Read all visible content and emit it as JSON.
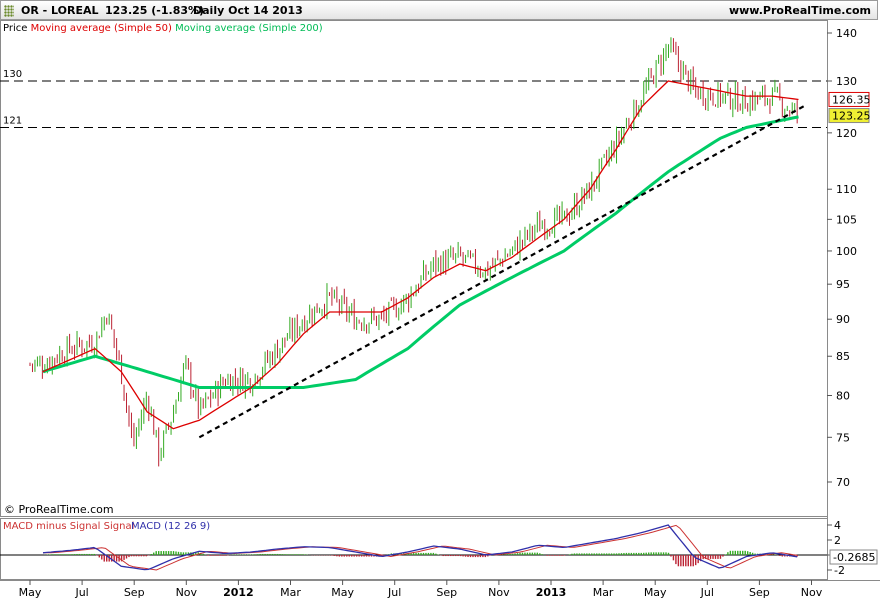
{
  "header": {
    "symbol": "OR - LOREAL",
    "last_quote": "123.25 (-1.83%)",
    "period_date": "Daily  Oct 14 2013",
    "site": "www.ProRealTime.com"
  },
  "legend": {
    "price": "Price",
    "ma50": "Moving average (Simple 50)",
    "ma200": "Moving average (Simple 200)"
  },
  "watermark": "© ProRealTime.com",
  "macd_legend": {
    "hist": "MACD minus Signal Signal",
    "macd": "MACD (12 26 9)"
  },
  "colors": {
    "up": "#33aa22",
    "down": "#bb2233",
    "ma50": "#dd0000",
    "ma200": "#00cc66",
    "macd": "#3030aa",
    "signal": "#cc3333",
    "badge_ma50": "#dd0000",
    "badge_price": "#efef33"
  },
  "chart_data": [
    {
      "type": "candlestick",
      "title": "OR - LOREAL",
      "y_axis": {
        "ylim": [
          66,
          144
        ],
        "ticks": [
          70,
          75,
          80,
          85,
          90,
          95,
          100,
          105,
          110,
          120,
          130,
          140
        ],
        "scale": "log"
      },
      "x_axis": {
        "labels": [
          "May",
          "Jul",
          "Sep",
          "Nov",
          "2012",
          "Mar",
          "May",
          "Jul",
          "Sep",
          "Nov",
          "2013",
          "Mar",
          "May",
          "Jul",
          "Sep",
          "Nov"
        ]
      },
      "levels": [
        {
          "label": "130",
          "value": 130
        },
        {
          "label": "121",
          "value": 121
        }
      ],
      "badges": [
        {
          "label": "126.35",
          "value": 126.35,
          "series": "Moving average (Simple 50)"
        },
        {
          "label": "123.25",
          "value": 123.25,
          "series": "Price"
        }
      ],
      "trendline": {
        "from": [
          "Nov 2011",
          75
        ],
        "to": [
          "Oct 2013",
          123
        ]
      },
      "price_path": [
        [
          "May 2011",
          84
        ],
        [
          "Jun 2011",
          86
        ],
        [
          "Jul 2011",
          87
        ],
        [
          "Jul 2011",
          91
        ],
        [
          "Aug 2011",
          83
        ],
        [
          "Aug 2011",
          74
        ],
        [
          "Sep 2011",
          80
        ],
        [
          "Sep 2011",
          73
        ],
        [
          "Oct 2011",
          78
        ],
        [
          "Oct 2011",
          84
        ],
        [
          "Nov 2011",
          78
        ],
        [
          "Dec 2011",
          82
        ],
        [
          "Jan 2012",
          82
        ],
        [
          "Feb 2012",
          86
        ],
        [
          "Mar 2012",
          90
        ],
        [
          "Apr 2012",
          93
        ],
        [
          "May 2012",
          90
        ],
        [
          "Jun 2012",
          90
        ],
        [
          "Jul 2012",
          93
        ],
        [
          "Aug 2012",
          98
        ],
        [
          "Sep 2012",
          99
        ],
        [
          "Oct 2012",
          97
        ],
        [
          "Nov 2012",
          100
        ],
        [
          "Dec 2012",
          104
        ],
        [
          "Jan 2013",
          105
        ],
        [
          "Feb 2013",
          110
        ],
        [
          "Mar 2013",
          118
        ],
        [
          "Apr 2013",
          127
        ],
        [
          "May 2013",
          137
        ],
        [
          "Jun 2013",
          128
        ],
        [
          "Jul 2013",
          127
        ],
        [
          "Aug 2013",
          126
        ],
        [
          "Sep 2013",
          127
        ],
        [
          "Oct 2013",
          123.25
        ]
      ],
      "ma50_path": [
        [
          "May 2011",
          83
        ],
        [
          "Jul 2011",
          86
        ],
        [
          "Aug 2011",
          83
        ],
        [
          "Sep 2011",
          78
        ],
        [
          "Oct 2011",
          76
        ],
        [
          "Nov 2011",
          77
        ],
        [
          "Dec 2011",
          79
        ],
        [
          "Jan 2012",
          81
        ],
        [
          "Feb 2012",
          84
        ],
        [
          "Mar 2012",
          88
        ],
        [
          "Apr 2012",
          91
        ],
        [
          "May 2012",
          91
        ],
        [
          "Jun 2012",
          91
        ],
        [
          "Jul 2012",
          93
        ],
        [
          "Aug 2012",
          96
        ],
        [
          "Sep 2012",
          98
        ],
        [
          "Oct 2012",
          97
        ],
        [
          "Nov 2012",
          99
        ],
        [
          "Dec 2012",
          102
        ],
        [
          "Jan 2013",
          105
        ],
        [
          "Feb 2013",
          110
        ],
        [
          "Mar 2013",
          117
        ],
        [
          "Apr 2013",
          125
        ],
        [
          "May 2013",
          130
        ],
        [
          "Jun 2013",
          129
        ],
        [
          "Jul 2013",
          128
        ],
        [
          "Aug 2013",
          127
        ],
        [
          "Sep 2013",
          127
        ],
        [
          "Oct 2013",
          126.35
        ]
      ],
      "ma200_path": [
        [
          "May 2011",
          83
        ],
        [
          "Jul 2011",
          85
        ],
        [
          "Sep 2011",
          83
        ],
        [
          "Nov 2011",
          81
        ],
        [
          "Jan 2012",
          81
        ],
        [
          "Mar 2012",
          81
        ],
        [
          "May 2012",
          82
        ],
        [
          "Jul 2012",
          86
        ],
        [
          "Sep 2012",
          92
        ],
        [
          "Nov 2012",
          96
        ],
        [
          "Jan 2013",
          100
        ],
        [
          "Mar 2013",
          106
        ],
        [
          "May 2013",
          113
        ],
        [
          "Jul 2013",
          119
        ],
        [
          "Aug 2013",
          121
        ],
        [
          "Oct 2013",
          123
        ]
      ]
    },
    {
      "type": "macd",
      "title": "MACD (12 26 9)",
      "series": [
        {
          "name": "MACD (12 26 9)"
        },
        {
          "name": "MACD minus Signal Signal"
        }
      ],
      "y_axis": {
        "ticks": [
          4,
          2,
          0,
          -2
        ]
      },
      "last_value_label": "-0.2685",
      "macd_path": [
        [
          "May 2011",
          0.3
        ],
        [
          "Jun 2011",
          0.6
        ],
        [
          "Jul 2011",
          1.0
        ],
        [
          "Aug 2011",
          -1.5
        ],
        [
          "Sep 2011",
          -2.0
        ],
        [
          "Oct 2011",
          -0.5
        ],
        [
          "Nov 2011",
          0.5
        ],
        [
          "Dec 2011",
          0.2
        ],
        [
          "Jan 2012",
          0.4
        ],
        [
          "Feb 2012",
          0.8
        ],
        [
          "Mar 2012",
          1.1
        ],
        [
          "Apr 2012",
          1.0
        ],
        [
          "May 2012",
          0.4
        ],
        [
          "Jun 2012",
          -0.2
        ],
        [
          "Jul 2012",
          0.4
        ],
        [
          "Aug 2012",
          1.2
        ],
        [
          "Sep 2012",
          0.8
        ],
        [
          "Oct 2012",
          0.0
        ],
        [
          "Nov 2012",
          0.4
        ],
        [
          "Dec 2012",
          1.3
        ],
        [
          "Jan 2013",
          1.0
        ],
        [
          "Feb 2013",
          1.6
        ],
        [
          "Mar 2013",
          2.2
        ],
        [
          "Apr 2013",
          3.0
        ],
        [
          "May 2013",
          4.0
        ],
        [
          "Jun 2013",
          -0.3
        ],
        [
          "Jul 2013",
          -1.8
        ],
        [
          "Aug 2013",
          -0.2
        ],
        [
          "Sep 2013",
          0.3
        ],
        [
          "Oct 2013",
          -0.2685
        ]
      ]
    }
  ]
}
